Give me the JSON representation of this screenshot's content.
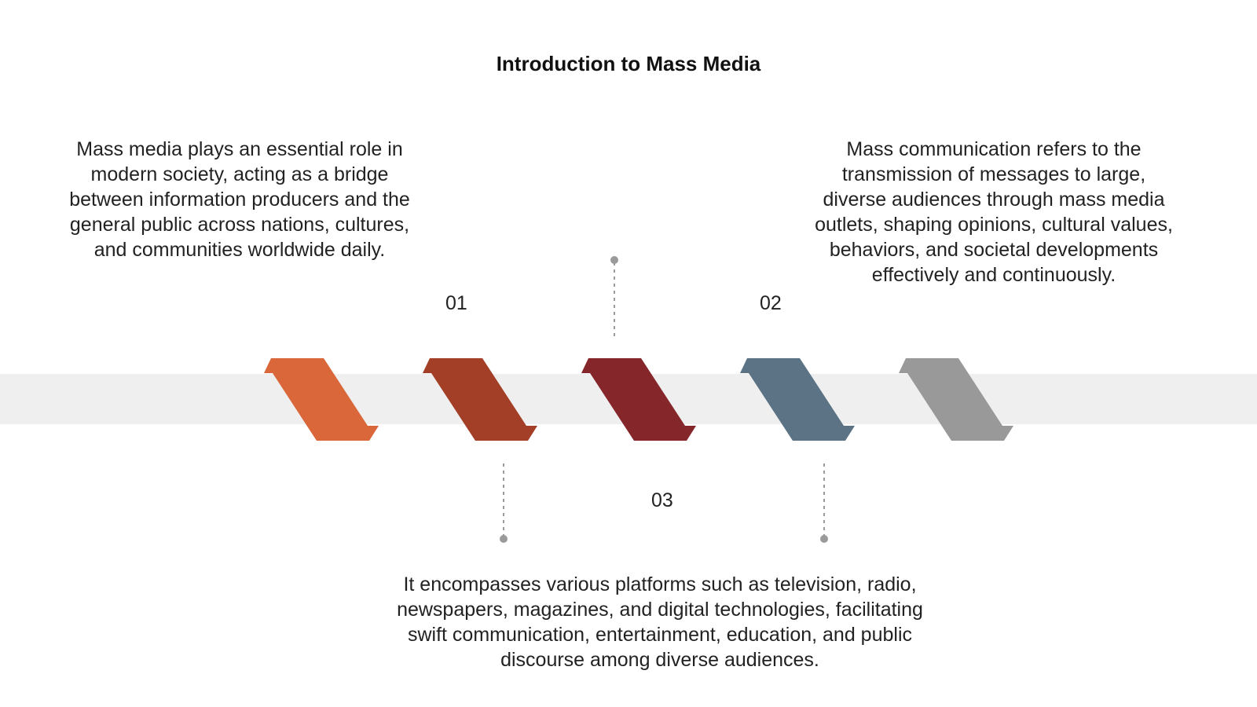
{
  "title": "Introduction to Mass Media",
  "steps": [
    {
      "number": "01",
      "text": "Mass media plays an essential role in modern society, acting as a bridge between information producers and the general public across nations, cultures, and communities worldwide daily."
    },
    {
      "number": "02",
      "text": "Mass communication refers to the transmission of messages to large, diverse audiences through mass media outlets, shaping opinions, cultural values, behaviors, and societal developments effectively and continuously."
    },
    {
      "number": "03",
      "text": "It encompasses various platforms such as television, radio, newspapers, magazines, and digital technologies, facilitating swift communication, entertainment, education, and public discourse among diverse audiences."
    }
  ],
  "colors": {
    "band": "#efefef",
    "chevrons": [
      "#b27a58",
      "#d9673a",
      "#a33f26",
      "#85262a",
      "#5b7384"
    ],
    "connector": "#9a9a9a"
  }
}
